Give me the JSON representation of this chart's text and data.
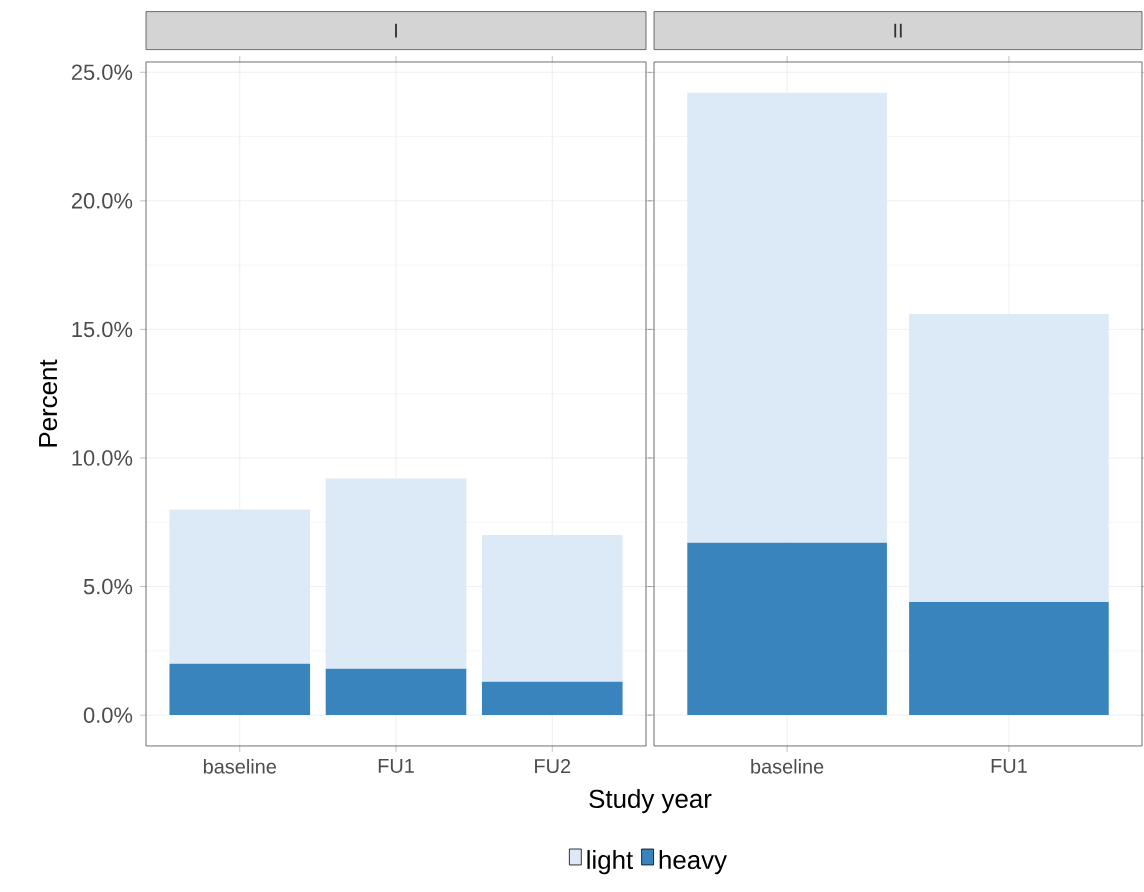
{
  "chart_data": [
    {
      "type": "bar",
      "title": "I",
      "xlabel": "Study year",
      "ylabel": "Percent",
      "categories": [
        "baseline",
        "FU1",
        "FU2"
      ],
      "stacked": true,
      "grid": true,
      "legend": "bottom",
      "series": [
        {
          "name": "heavy",
          "color": "#3a84be",
          "values": [
            2.0,
            1.8,
            1.3
          ]
        },
        {
          "name": "light",
          "color": "#dce9f6",
          "values": [
            6.0,
            7.4,
            5.7
          ]
        }
      ],
      "ylim": [
        -1.2,
        25.4
      ],
      "yticks": [
        {
          "value": 0,
          "label": "0.0%"
        },
        {
          "value": 5,
          "label": "5.0%"
        },
        {
          "value": 10,
          "label": "10.0%"
        },
        {
          "value": 15,
          "label": "15.0%"
        },
        {
          "value": 20,
          "label": "20.0%"
        },
        {
          "value": 25,
          "label": "25.0%"
        }
      ]
    },
    {
      "type": "bar",
      "title": "II",
      "categories": [
        "baseline",
        "FU1"
      ],
      "stacked": true,
      "grid": true,
      "tick_labels": "x",
      "series": [
        {
          "color": "#3a84be",
          "values": [
            6.7,
            4.4
          ]
        },
        {
          "color": "#dce9f6",
          "values": [
            17.5,
            11.2
          ]
        }
      ],
      "ylim": [
        -1.2,
        25.4
      ]
    }
  ]
}
